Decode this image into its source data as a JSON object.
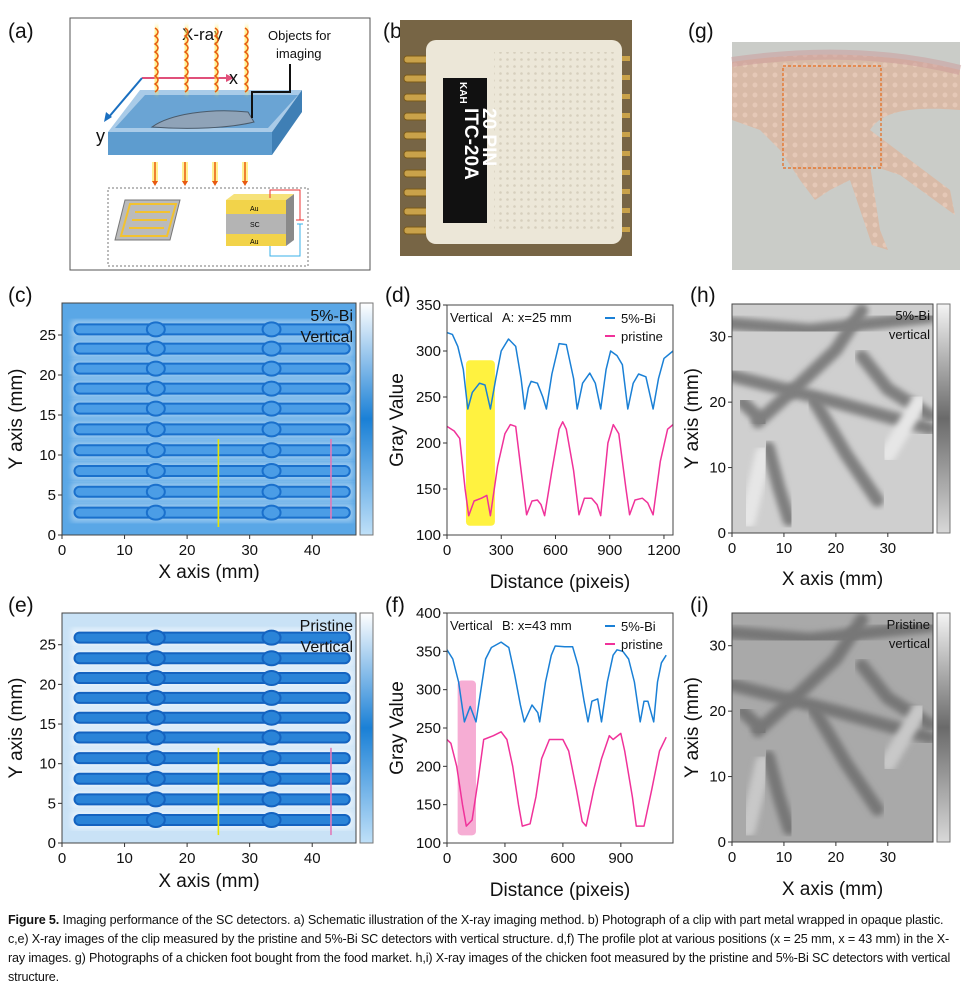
{
  "panel_labels": {
    "a": "(a)",
    "b": "(b)",
    "c": "(c)",
    "d": "(d)",
    "e": "(e)",
    "f": "(f)",
    "g": "(g)",
    "h": "(h)",
    "i": "(i)"
  },
  "schematic": {
    "xray_label": "X-ray",
    "x_axis": "x",
    "y_axis": "y",
    "objects_label_line1": "Objects for",
    "objects_label_line2": "imaging",
    "layer_top": "Au",
    "layer_mid": "SC",
    "layer_bottom": "Au"
  },
  "photo_clip": {
    "brand": "KAH",
    "model": "ITC-20A",
    "pins": "20 PIN"
  },
  "caption": {
    "figure_label": "Figure 5.",
    "text": " Imaging performance of the SC detectors. a) Schematic illustration of the X-ray imaging method. b) Photograph of a clip with part metal wrapped in opaque plastic. c,e) X-ray images of the clip measured by the pristine and 5%-Bi SC detectors with vertical structure. d,f) The profile plot at various positions (x = 25 mm, x = 43 mm) in the X-ray images. g) Photographs of a chicken foot bought from the food market. h,i) X-ray images of the chicken foot measured by the pristine and 5%-Bi SC detectors with vertical structure."
  },
  "colors": {
    "bi": "#1a80d6",
    "pristine": "#f0329a",
    "highlight_yellow": "#fff01e",
    "highlight_pink": "#f59fcd",
    "marker_yellow": "#e6e600",
    "marker_pink": "#e07ab8"
  },
  "chart_data": [
    {
      "id": "c",
      "type": "heatmap",
      "title": "",
      "annotation": [
        "5%-Bi",
        "Vertical"
      ],
      "xlabel": "X axis (mm)",
      "ylabel": "Y axis (mm)",
      "xlim": [
        0,
        47
      ],
      "ylim": [
        0,
        29
      ],
      "xticks": [
        0,
        10,
        20,
        30,
        40
      ],
      "yticks": [
        0,
        5,
        10,
        15,
        20,
        25
      ],
      "colormap": "blue",
      "strips_y_mm": [
        2.8,
        5.4,
        8.0,
        10.6,
        13.2,
        15.8,
        18.3,
        20.8,
        23.3,
        25.7
      ],
      "markers": [
        {
          "x": 25,
          "y": [
            1,
            12
          ],
          "color": "#e6e600"
        },
        {
          "x": 43,
          "y": [
            2,
            12
          ],
          "color": "#e07ab8"
        }
      ]
    },
    {
      "id": "e",
      "type": "heatmap",
      "title": "",
      "annotation": [
        "Pristine",
        "Vertical"
      ],
      "xlabel": "X axis (mm)",
      "ylabel": "Y axis (mm)",
      "xlim": [
        0,
        47
      ],
      "ylim": [
        0,
        29
      ],
      "xticks": [
        0,
        10,
        20,
        30,
        40
      ],
      "yticks": [
        0,
        5,
        10,
        15,
        20,
        25
      ],
      "colormap": "blue",
      "strips_y_mm": [
        2.9,
        5.5,
        8.1,
        10.7,
        13.3,
        15.8,
        18.3,
        20.8,
        23.3,
        25.9
      ],
      "markers": [
        {
          "x": 25,
          "y": [
            1,
            12
          ],
          "color": "#e6e600"
        },
        {
          "x": 43,
          "y": [
            1,
            12
          ],
          "color": "#e07ab8"
        }
      ]
    },
    {
      "id": "d",
      "type": "line",
      "annotation": [
        "Vertical",
        "A: x=25 mm"
      ],
      "xlabel": "Distance (pixeis)",
      "ylabel": "Gray Value",
      "xlim": [
        0,
        1250
      ],
      "ylim": [
        100,
        350
      ],
      "xticks": [
        0,
        300,
        600,
        900,
        1200
      ],
      "yticks": [
        100,
        150,
        200,
        250,
        300,
        350
      ],
      "legend": "top-right",
      "highlight": {
        "x": [
          105,
          265
        ],
        "y": [
          110,
          290
        ],
        "color": "#fff01e"
      },
      "series": [
        {
          "name": "5%-Bi",
          "color": "#1a80d6",
          "x": [
            0,
            30,
            60,
            90,
            115,
            140,
            180,
            210,
            240,
            270,
            300,
            340,
            380,
            410,
            430,
            450,
            465,
            500,
            530,
            550,
            580,
            620,
            660,
            700,
            720,
            750,
            790,
            820,
            850,
            880,
            905,
            940,
            970,
            1000,
            1030,
            1060,
            1100,
            1140,
            1170,
            1200,
            1250
          ],
          "y": [
            320,
            318,
            305,
            280,
            237,
            255,
            265,
            263,
            237,
            270,
            300,
            313,
            305,
            270,
            237,
            260,
            267,
            265,
            250,
            237,
            275,
            308,
            307,
            270,
            237,
            265,
            276,
            265,
            237,
            280,
            300,
            295,
            285,
            237,
            265,
            275,
            272,
            237,
            270,
            292,
            300
          ]
        },
        {
          "name": "pristine",
          "color": "#f0329a",
          "x": [
            0,
            40,
            70,
            100,
            120,
            150,
            190,
            220,
            240,
            280,
            320,
            350,
            380,
            410,
            440,
            470,
            500,
            520,
            540,
            580,
            620,
            640,
            660,
            700,
            730,
            760,
            800,
            830,
            850,
            890,
            920,
            950,
            990,
            1010,
            1040,
            1080,
            1110,
            1140,
            1180,
            1220,
            1250
          ],
          "y": [
            218,
            213,
            205,
            150,
            121,
            137,
            140,
            143,
            121,
            175,
            210,
            220,
            218,
            170,
            122,
            137,
            138,
            133,
            121,
            170,
            215,
            223,
            215,
            170,
            122,
            140,
            140,
            133,
            121,
            200,
            220,
            210,
            150,
            122,
            138,
            140,
            135,
            122,
            180,
            215,
            220
          ]
        }
      ]
    },
    {
      "id": "f",
      "type": "line",
      "annotation": [
        "Vertical",
        "B: x=43 mm"
      ],
      "xlabel": "Distance (pixeis)",
      "ylabel": "Gray Value",
      "xlim": [
        0,
        1170
      ],
      "ylim": [
        100,
        400
      ],
      "xticks": [
        0,
        300,
        600,
        900
      ],
      "yticks": [
        100,
        150,
        200,
        250,
        300,
        350,
        400
      ],
      "legend": "top-right",
      "highlight": {
        "x": [
          55,
          150
        ],
        "y": [
          110,
          312
        ],
        "color": "#f59fcd"
      },
      "series": [
        {
          "name": "5%-Bi",
          "color": "#1a80d6",
          "x": [
            0,
            30,
            60,
            90,
            120,
            150,
            170,
            200,
            230,
            280,
            320,
            350,
            380,
            400,
            440,
            470,
            480,
            510,
            540,
            560,
            610,
            650,
            680,
            710,
            730,
            750,
            780,
            800,
            830,
            860,
            880,
            910,
            940,
            970,
            1000,
            1020,
            1040,
            1070,
            1090,
            1110,
            1135
          ],
          "y": [
            352,
            340,
            310,
            258,
            278,
            258,
            290,
            340,
            355,
            362,
            355,
            320,
            280,
            258,
            280,
            270,
            258,
            310,
            345,
            357,
            356,
            356,
            330,
            285,
            258,
            285,
            288,
            258,
            310,
            345,
            352,
            350,
            340,
            310,
            258,
            285,
            285,
            258,
            310,
            335,
            345
          ]
        },
        {
          "name": "pristine",
          "color": "#f0329a",
          "x": [
            0,
            20,
            50,
            80,
            100,
            130,
            160,
            190,
            240,
            280,
            310,
            340,
            370,
            390,
            430,
            460,
            490,
            530,
            600,
            630,
            670,
            700,
            720,
            760,
            800,
            840,
            860,
            900,
            920,
            960,
            980,
            1020,
            1060,
            1100,
            1135
          ],
          "y": [
            235,
            230,
            200,
            150,
            122,
            130,
            180,
            235,
            240,
            245,
            235,
            200,
            150,
            122,
            125,
            160,
            210,
            235,
            235,
            220,
            170,
            128,
            122,
            170,
            210,
            240,
            235,
            243,
            220,
            160,
            122,
            122,
            170,
            220,
            238
          ]
        }
      ]
    },
    {
      "id": "h",
      "type": "heatmap",
      "annotation": [
        "5%-Bi",
        "vertical"
      ],
      "xlabel": "X axis (mm)",
      "ylabel": "Y axis (mm)",
      "xlim": [
        0,
        38.7
      ],
      "ylim": [
        0,
        35
      ],
      "xticks": [
        0,
        10,
        20,
        30
      ],
      "yticks": [
        0,
        10,
        20,
        30
      ],
      "colormap": "gray"
    },
    {
      "id": "i",
      "type": "heatmap",
      "annotation": [
        "Pristine",
        "vertical"
      ],
      "xlabel": "X axis (mm)",
      "ylabel": "Y axis (mm)",
      "xlim": [
        0,
        38.7
      ],
      "ylim": [
        0,
        35
      ],
      "xticks": [
        0,
        10,
        20,
        30
      ],
      "yticks": [
        0,
        10,
        20,
        30
      ],
      "colormap": "gray"
    }
  ]
}
